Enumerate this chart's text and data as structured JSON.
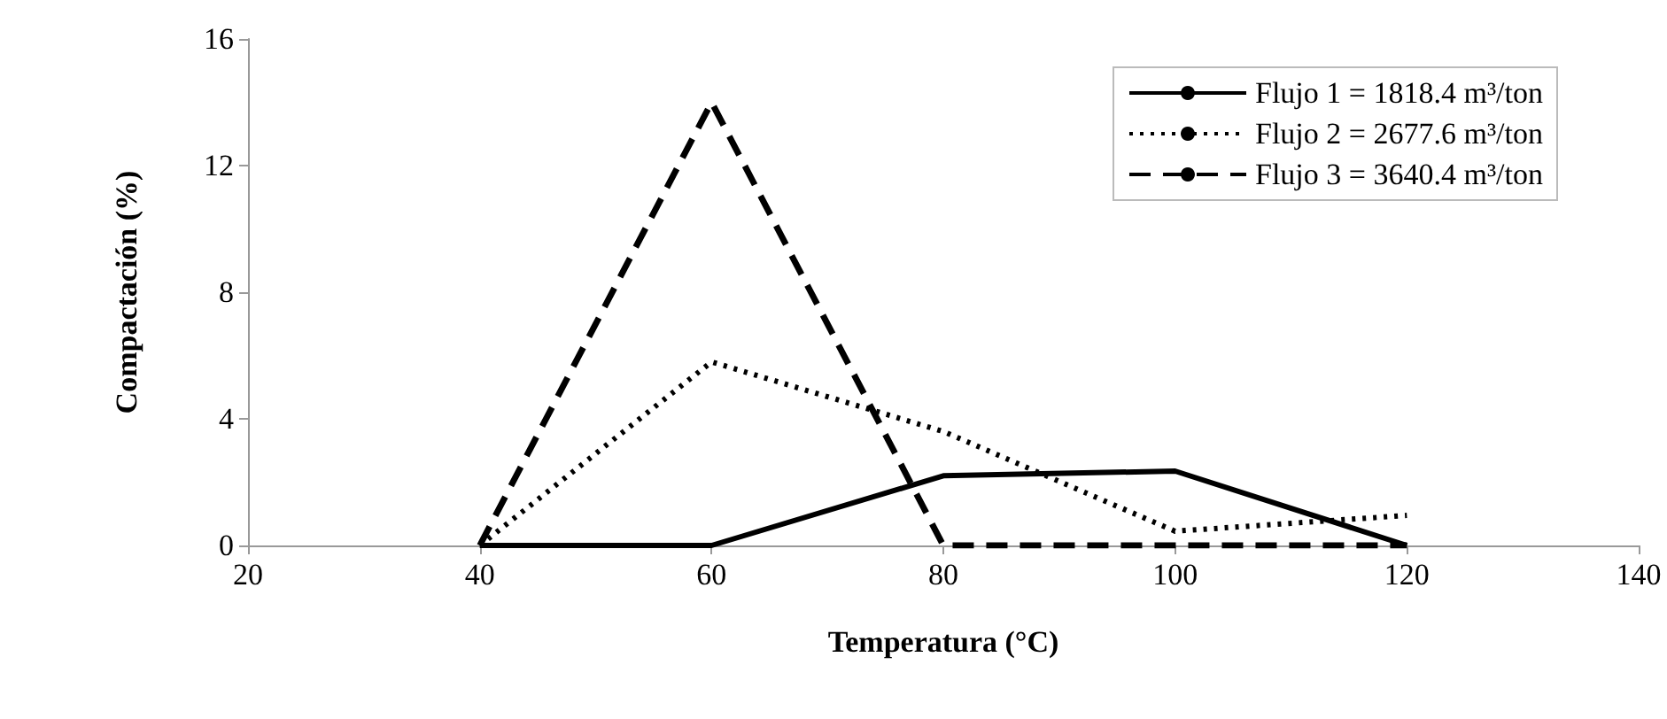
{
  "chart_data": {
    "type": "line",
    "xlabel": "Temperatura (°C)",
    "ylabel": "Compactación (%)",
    "xlim": [
      20,
      140
    ],
    "xticks": [
      20,
      40,
      60,
      80,
      100,
      120,
      140
    ],
    "ylim": [
      0,
      16
    ],
    "yticks": [
      0,
      4,
      8,
      12,
      16
    ],
    "grid": false,
    "legend": "top right",
    "marker": "none",
    "series": [
      {
        "name": "Flujo 1 = 1818.4 m³/ton",
        "color": "#000000",
        "line_style": "solid",
        "x": [
          40,
          60,
          80,
          100,
          120
        ],
        "values": [
          0,
          0,
          2.2,
          2.35,
          0
        ]
      },
      {
        "name": "Flujo 2 = 2677.6 m³/ton",
        "color": "#000000",
        "line_style": "dotted",
        "x": [
          40,
          60,
          80,
          100,
          120
        ],
        "values": [
          0,
          5.8,
          3.6,
          0.45,
          0.95
        ]
      },
      {
        "name": "Flujo 3 = 3640.4 m³/ton",
        "color": "#000000",
        "line_style": "dashed",
        "x": [
          40,
          60,
          80,
          100,
          120
        ],
        "values": [
          0,
          14,
          0,
          0,
          0
        ]
      }
    ]
  }
}
